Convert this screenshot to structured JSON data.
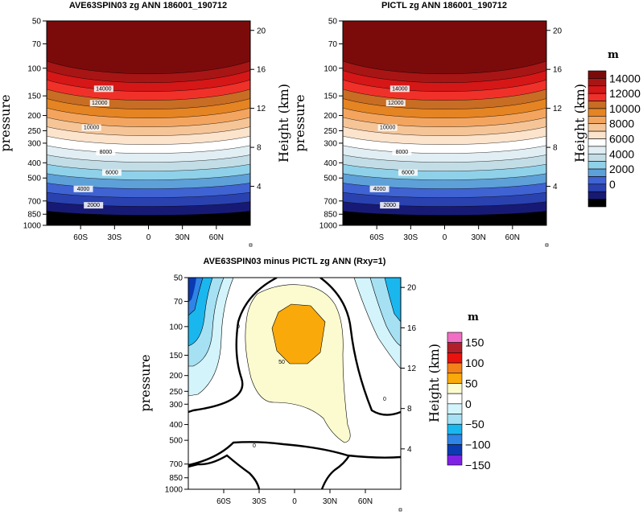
{
  "chart_data": [
    {
      "type": "contour",
      "title": "AVE63SPIN03 zg ANN 186001_190712",
      "ylabel": "pressure",
      "y2label": "Height (km)",
      "pressure_ticks": [
        50,
        70,
        100,
        150,
        200,
        250,
        300,
        400,
        500,
        700,
        850,
        1000
      ],
      "height_ticks": [
        4,
        8,
        12,
        16,
        20
      ],
      "lat_ticks": [
        "60S",
        "30S",
        "0",
        "30N",
        "60N"
      ],
      "contour_labels": [
        "14000",
        "12000",
        "10000",
        "8000",
        "6000",
        "4000",
        "2000"
      ],
      "levels": [
        0,
        1000,
        2000,
        3000,
        4000,
        5000,
        6000,
        7000,
        8000,
        9000,
        10000,
        11000,
        12000,
        13000,
        14000,
        15000
      ]
    },
    {
      "type": "contour",
      "title": "PICTL zg ANN 186001_190712",
      "ylabel": "pressure",
      "y2label": "Height (km)",
      "pressure_ticks": [
        50,
        70,
        100,
        150,
        200,
        250,
        300,
        400,
        500,
        700,
        850,
        1000
      ],
      "height_ticks": [
        4,
        8,
        12,
        16,
        20
      ],
      "lat_ticks": [
        "60S",
        "30S",
        "0",
        "30N",
        "60N"
      ],
      "contour_labels": [
        "14000",
        "12000",
        "10000",
        "8000",
        "6000",
        "4000",
        "2000"
      ],
      "levels": [
        0,
        1000,
        2000,
        3000,
        4000,
        5000,
        6000,
        7000,
        8000,
        9000,
        10000,
        11000,
        12000,
        13000,
        14000,
        15000
      ]
    },
    {
      "type": "contour",
      "title": "AVE63SPIN03 minus PICTL zg ANN (Rxy=1)",
      "ylabel": "pressure",
      "y2label": "Height (km)",
      "pressure_ticks": [
        50,
        70,
        100,
        150,
        200,
        250,
        300,
        400,
        500,
        700,
        850,
        1000
      ],
      "height_ticks": [
        4,
        8,
        12,
        16,
        20
      ],
      "lat_ticks": [
        "60S",
        "30S",
        "0",
        "30N",
        "60N"
      ],
      "contour_labels": [
        "0",
        "50",
        "0",
        "0"
      ],
      "levels": [
        -150,
        -125,
        -100,
        -75,
        -50,
        -25,
        0,
        25,
        50,
        75,
        100,
        125,
        150
      ]
    }
  ],
  "colorbars": [
    {
      "unit": "m",
      "labels": [
        "14000",
        "12000",
        "10000",
        "8000",
        "6000",
        "4000",
        "2000",
        "0"
      ],
      "colors": [
        "#7b0b0b",
        "#a81515",
        "#d61717",
        "#f0312a",
        "#c86d24",
        "#e58423",
        "#f3a55f",
        "#f5c598",
        "#fbe3cc",
        "#ffffff",
        "#e1eef3",
        "#c3dde7",
        "#8fd1e9",
        "#5ea0d8",
        "#3f63d2",
        "#2a42b0",
        "#171a74",
        "#000000"
      ]
    },
    {
      "unit": "m",
      "labels": [
        "150",
        "100",
        "50",
        "0",
        "−50",
        "−100",
        "−150"
      ],
      "colors": [
        "#f06ec3",
        "#b0202a",
        "#e8130f",
        "#f3811a",
        "#f9a90a",
        "#fcfbcf",
        "#ffffff",
        "#d3f4fb",
        "#a6e0f3",
        "#1ab7ef",
        "#2f84e6",
        "#0a3bb3",
        "#7f22e3"
      ]
    }
  ]
}
